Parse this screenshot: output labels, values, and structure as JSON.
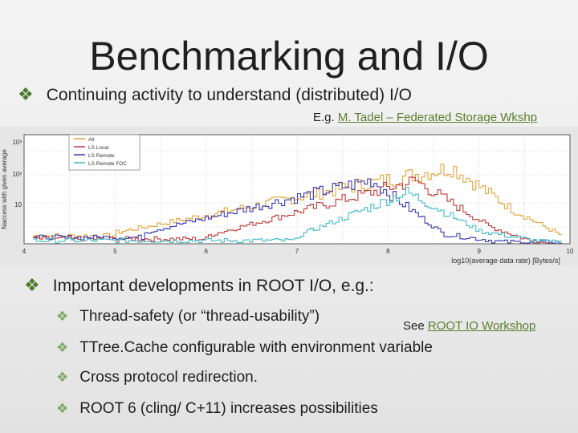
{
  "slide": {
    "title": "Benchmarking and I/O",
    "bullet1": "Continuing activity to understand (distributed) I/O",
    "ref1_prefix": "E.g. ",
    "ref1_link": "M. Tadel – Federated Storage Wkshp",
    "bullet2": "Important developments in ROOT I/O, e.g.:",
    "sub_items": [
      "Thread-safety (or “thread-usability”)",
      "TTree.Cache configurable with environment variable",
      "Cross protocol redirection.",
      "ROOT 6 (cling/ C+11) increases possibilities"
    ],
    "ref2_prefix": "See ",
    "ref2_link": "ROOT IO Workshop"
  },
  "chart_data": {
    "type": "line",
    "xlabel": "log10(average data rate) [Bytes/s]",
    "ylabel": "Naccess with given average",
    "x_ticks": [
      "4",
      "5",
      "6",
      "7",
      "8",
      "9",
      "10"
    ],
    "y_ticks": [
      "10",
      "10²",
      "10³"
    ],
    "legend": [
      "All",
      "LS Local",
      "LS Remote",
      "LS Remote FOC"
    ],
    "colors": {
      "All": "#e8a23a",
      "LS Local": "#c23a3a",
      "LS Remote": "#3a3ab0",
      "LS Remote FOC": "#42bcc8"
    },
    "series": [
      {
        "name": "All",
        "peak_x": 8.7
      },
      {
        "name": "LS Local",
        "peak_x": 8.3
      },
      {
        "name": "LS Remote",
        "peak_x": 7.8
      },
      {
        "name": "LS Remote FOC",
        "peak_x": 8.2
      }
    ]
  }
}
